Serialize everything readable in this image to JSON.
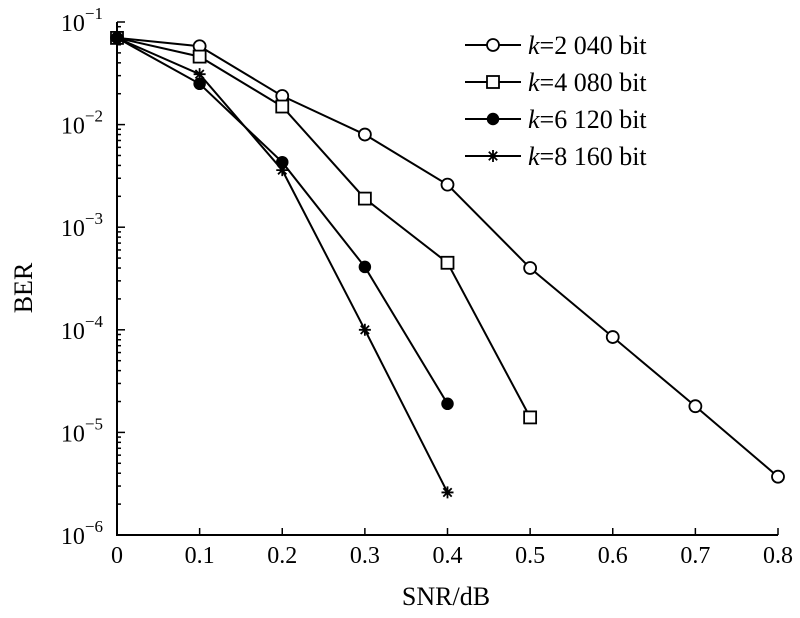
{
  "chart_data": {
    "type": "line",
    "xlabel": "SNR/dB",
    "ylabel": "BER",
    "xlim": [
      0,
      0.8
    ],
    "ylim": [
      1e-06,
      0.1
    ],
    "yscale": "log",
    "xticks": [
      "0",
      "0.1",
      "0.2",
      "0.3",
      "0.4",
      "0.5",
      "0.6",
      "0.7",
      "0.8"
    ],
    "xtick_values": [
      0,
      0.1,
      0.2,
      0.3,
      0.4,
      0.5,
      0.6,
      0.7,
      0.8
    ],
    "yticks": [
      {
        "base": "10",
        "exp": "−1",
        "value": 0.1
      },
      {
        "base": "10",
        "exp": "−2",
        "value": 0.01
      },
      {
        "base": "10",
        "exp": "−3",
        "value": 0.001
      },
      {
        "base": "10",
        "exp": "−4",
        "value": 0.0001
      },
      {
        "base": "10",
        "exp": "−5",
        "value": 1e-05
      },
      {
        "base": "10",
        "exp": "−6",
        "value": 1e-06
      }
    ],
    "legend_position": "top-right",
    "series": [
      {
        "name": "k=2 040 bit",
        "var": "k",
        "label_rest": "=2 040 bit",
        "marker": "circle",
        "x": [
          0,
          0.1,
          0.2,
          0.3,
          0.4,
          0.5,
          0.6,
          0.7,
          0.8
        ],
        "y": [
          0.07,
          0.058,
          0.019,
          0.008,
          0.0026,
          0.0004,
          8.5e-05,
          1.8e-05,
          3.7e-06
        ]
      },
      {
        "name": "k=4 080 bit",
        "var": "k",
        "label_rest": "=4 080 bit",
        "marker": "square",
        "x": [
          0,
          0.1,
          0.2,
          0.3,
          0.4,
          0.5
        ],
        "y": [
          0.07,
          0.046,
          0.015,
          0.0019,
          0.00045,
          1.4e-05
        ]
      },
      {
        "name": "k=6 120 bit",
        "var": "k",
        "label_rest": "=6 120 bit",
        "marker": "filled-circle",
        "x": [
          0,
          0.1,
          0.2,
          0.3,
          0.4
        ],
        "y": [
          0.07,
          0.025,
          0.0043,
          0.00041,
          1.9e-05
        ]
      },
      {
        "name": "k=8 160 bit",
        "var": "k",
        "label_rest": "=8 160 bit",
        "marker": "star",
        "x": [
          0,
          0.1,
          0.2,
          0.3,
          0.4
        ],
        "y": [
          0.07,
          0.031,
          0.0036,
          0.0001,
          2.6e-06
        ]
      }
    ]
  }
}
